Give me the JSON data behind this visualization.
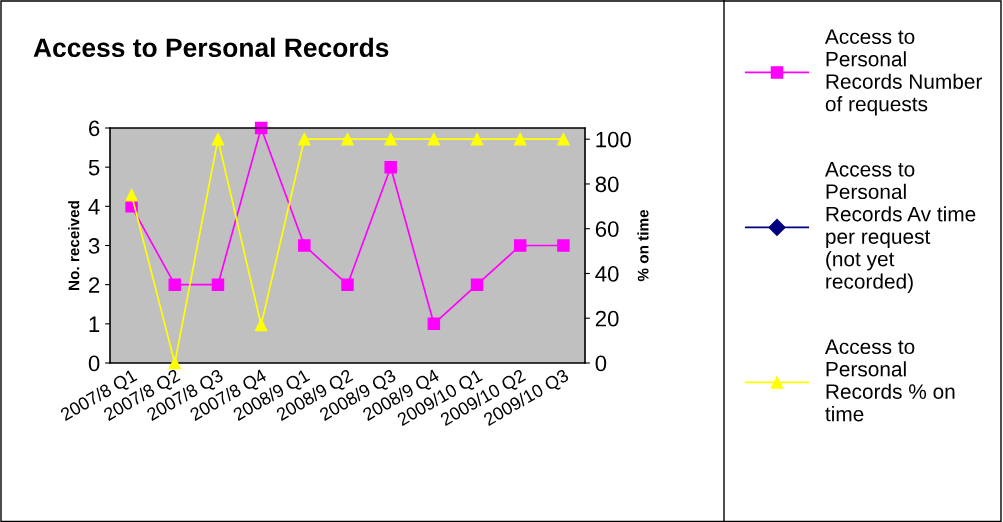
{
  "chart_data": {
    "type": "line",
    "title": "Access to Personal Records",
    "ylabel": "No. received",
    "y2label": "% on time",
    "categories": [
      "2007/8 Q1",
      "2007/8 Q2",
      "2007/8 Q3",
      "2007/8 Q4",
      "2008/9 Q1",
      "2008/9 Q2",
      "2008/9 Q3",
      "2008/9 Q4",
      "2009/10 Q1",
      "2009/10 Q2",
      "2009/10 Q3"
    ],
    "series": [
      {
        "name": "Access to Personal Records Number of requests",
        "color": "#ff00ff",
        "marker": "square",
        "values": [
          4,
          2,
          2,
          6,
          3,
          2,
          5,
          1,
          2,
          3,
          3
        ]
      },
      {
        "name": "Access to Personal Records Av time per request (not yet recorded)",
        "color": "#000080",
        "marker": "diamond",
        "values": [
          null,
          null,
          null,
          null,
          null,
          null,
          null,
          null,
          null,
          null,
          null
        ]
      },
      {
        "name": "Access to Personal Records % on time",
        "color": "#ffff00",
        "marker": "triangle",
        "axis": "y2",
        "values": [
          75,
          0,
          100,
          17,
          100,
          100,
          100,
          100,
          100,
          100,
          100
        ]
      }
    ],
    "ylim": [
      0,
      6
    ],
    "yticks": [
      0,
      1,
      2,
      3,
      4,
      5,
      6
    ],
    "y2lim": [
      0,
      105
    ],
    "y2ticks": [
      0,
      20,
      40,
      60,
      80,
      100
    ],
    "grid": false,
    "legend": "right",
    "line_style": "solid"
  }
}
